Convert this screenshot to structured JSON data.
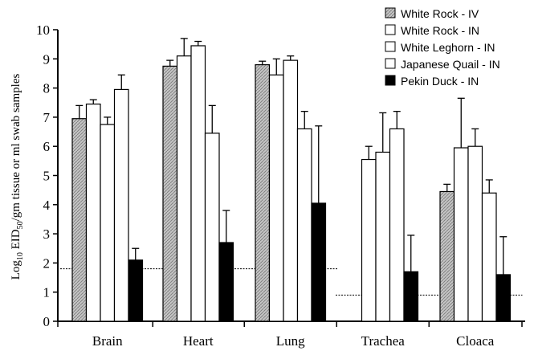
{
  "chart_data": {
    "type": "bar",
    "ylabel": {
      "prefix": "Log",
      "sub1": "10",
      "mid": " EID",
      "sub2": "50",
      "suffix": "/gm tissue or ml swab samples"
    },
    "ylim": [
      0,
      10
    ],
    "yticks": [
      "0",
      "1",
      "2",
      "3",
      "4",
      "5",
      "6",
      "7",
      "8",
      "9",
      "10"
    ],
    "categories": [
      "Brain",
      "Heart",
      "Lung",
      "Trachea",
      "Cloaca"
    ],
    "series": [
      {
        "name": "White Rock - IV",
        "style": "hatch",
        "values": [
          6.95,
          8.75,
          8.8,
          null,
          4.45
        ],
        "errors": [
          0.45,
          0.2,
          0.12,
          null,
          0.25
        ]
      },
      {
        "name": "White Rock - IN",
        "style": "white",
        "values": [
          7.45,
          9.1,
          8.45,
          5.55,
          5.95
        ],
        "errors": [
          0.15,
          0.6,
          0.55,
          0.45,
          1.7
        ]
      },
      {
        "name": "White Leghorn - IN",
        "style": "white",
        "values": [
          6.75,
          9.45,
          8.95,
          5.8,
          6.0
        ],
        "errors": [
          0.25,
          0.15,
          0.15,
          1.35,
          0.6
        ]
      },
      {
        "name": "Japanese Quail - IN",
        "style": "white",
        "values": [
          7.95,
          6.45,
          6.6,
          6.6,
          4.4
        ],
        "errors": [
          0.5,
          0.95,
          0.6,
          0.6,
          0.45
        ]
      },
      {
        "name": "Pekin Duck - IN",
        "style": "black",
        "values": [
          2.1,
          2.7,
          4.05,
          1.7,
          1.6
        ],
        "errors": [
          0.4,
          1.1,
          2.65,
          1.25,
          1.3
        ]
      }
    ],
    "reference_lines": [
      {
        "value": 1.8,
        "from_category": "Brain",
        "to_category": "Lung"
      },
      {
        "value": 0.9,
        "from_category": "Trachea",
        "to_category": "Cloaca"
      }
    ],
    "legend_position": "top-right",
    "grid": false,
    "colors": {
      "hatch": "#b0b0b0",
      "white": "#ffffff",
      "black": "#000000"
    }
  }
}
